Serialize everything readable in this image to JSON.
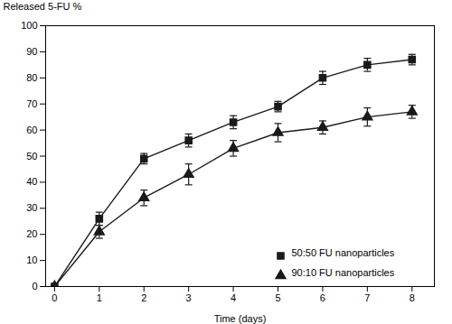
{
  "chart_data": {
    "type": "line",
    "xlabel": "Time (days)",
    "ylabel": "Released 5-FU %",
    "x": [
      0,
      1,
      2,
      3,
      4,
      5,
      6,
      7,
      8
    ],
    "xlim": [
      -0.2,
      8.5
    ],
    "ylim": [
      0,
      100
    ],
    "xticks": [
      0,
      1,
      2,
      3,
      4,
      5,
      6,
      7,
      8
    ],
    "yticks": [
      0,
      10,
      20,
      30,
      40,
      50,
      60,
      70,
      80,
      90,
      100
    ],
    "grid": false,
    "legend": "lower right",
    "series": [
      {
        "name": "50:50 FU nanoparticles",
        "color": "#1a1a1a",
        "marker": "square",
        "values": [
          0,
          26,
          49,
          56,
          63,
          69,
          80,
          85,
          87
        ],
        "errors": [
          0,
          2.5,
          2.0,
          2.5,
          2.5,
          2.0,
          2.5,
          2.5,
          2.0
        ]
      },
      {
        "name": "90:10 FU nanoparticles",
        "color": "#1a1a1a",
        "marker": "triangle",
        "values": [
          0,
          21,
          34,
          43,
          53,
          59,
          61,
          65,
          67
        ],
        "errors": [
          0,
          2.5,
          3.0,
          4.0,
          3.0,
          3.5,
          2.5,
          3.5,
          2.5
        ]
      }
    ]
  }
}
